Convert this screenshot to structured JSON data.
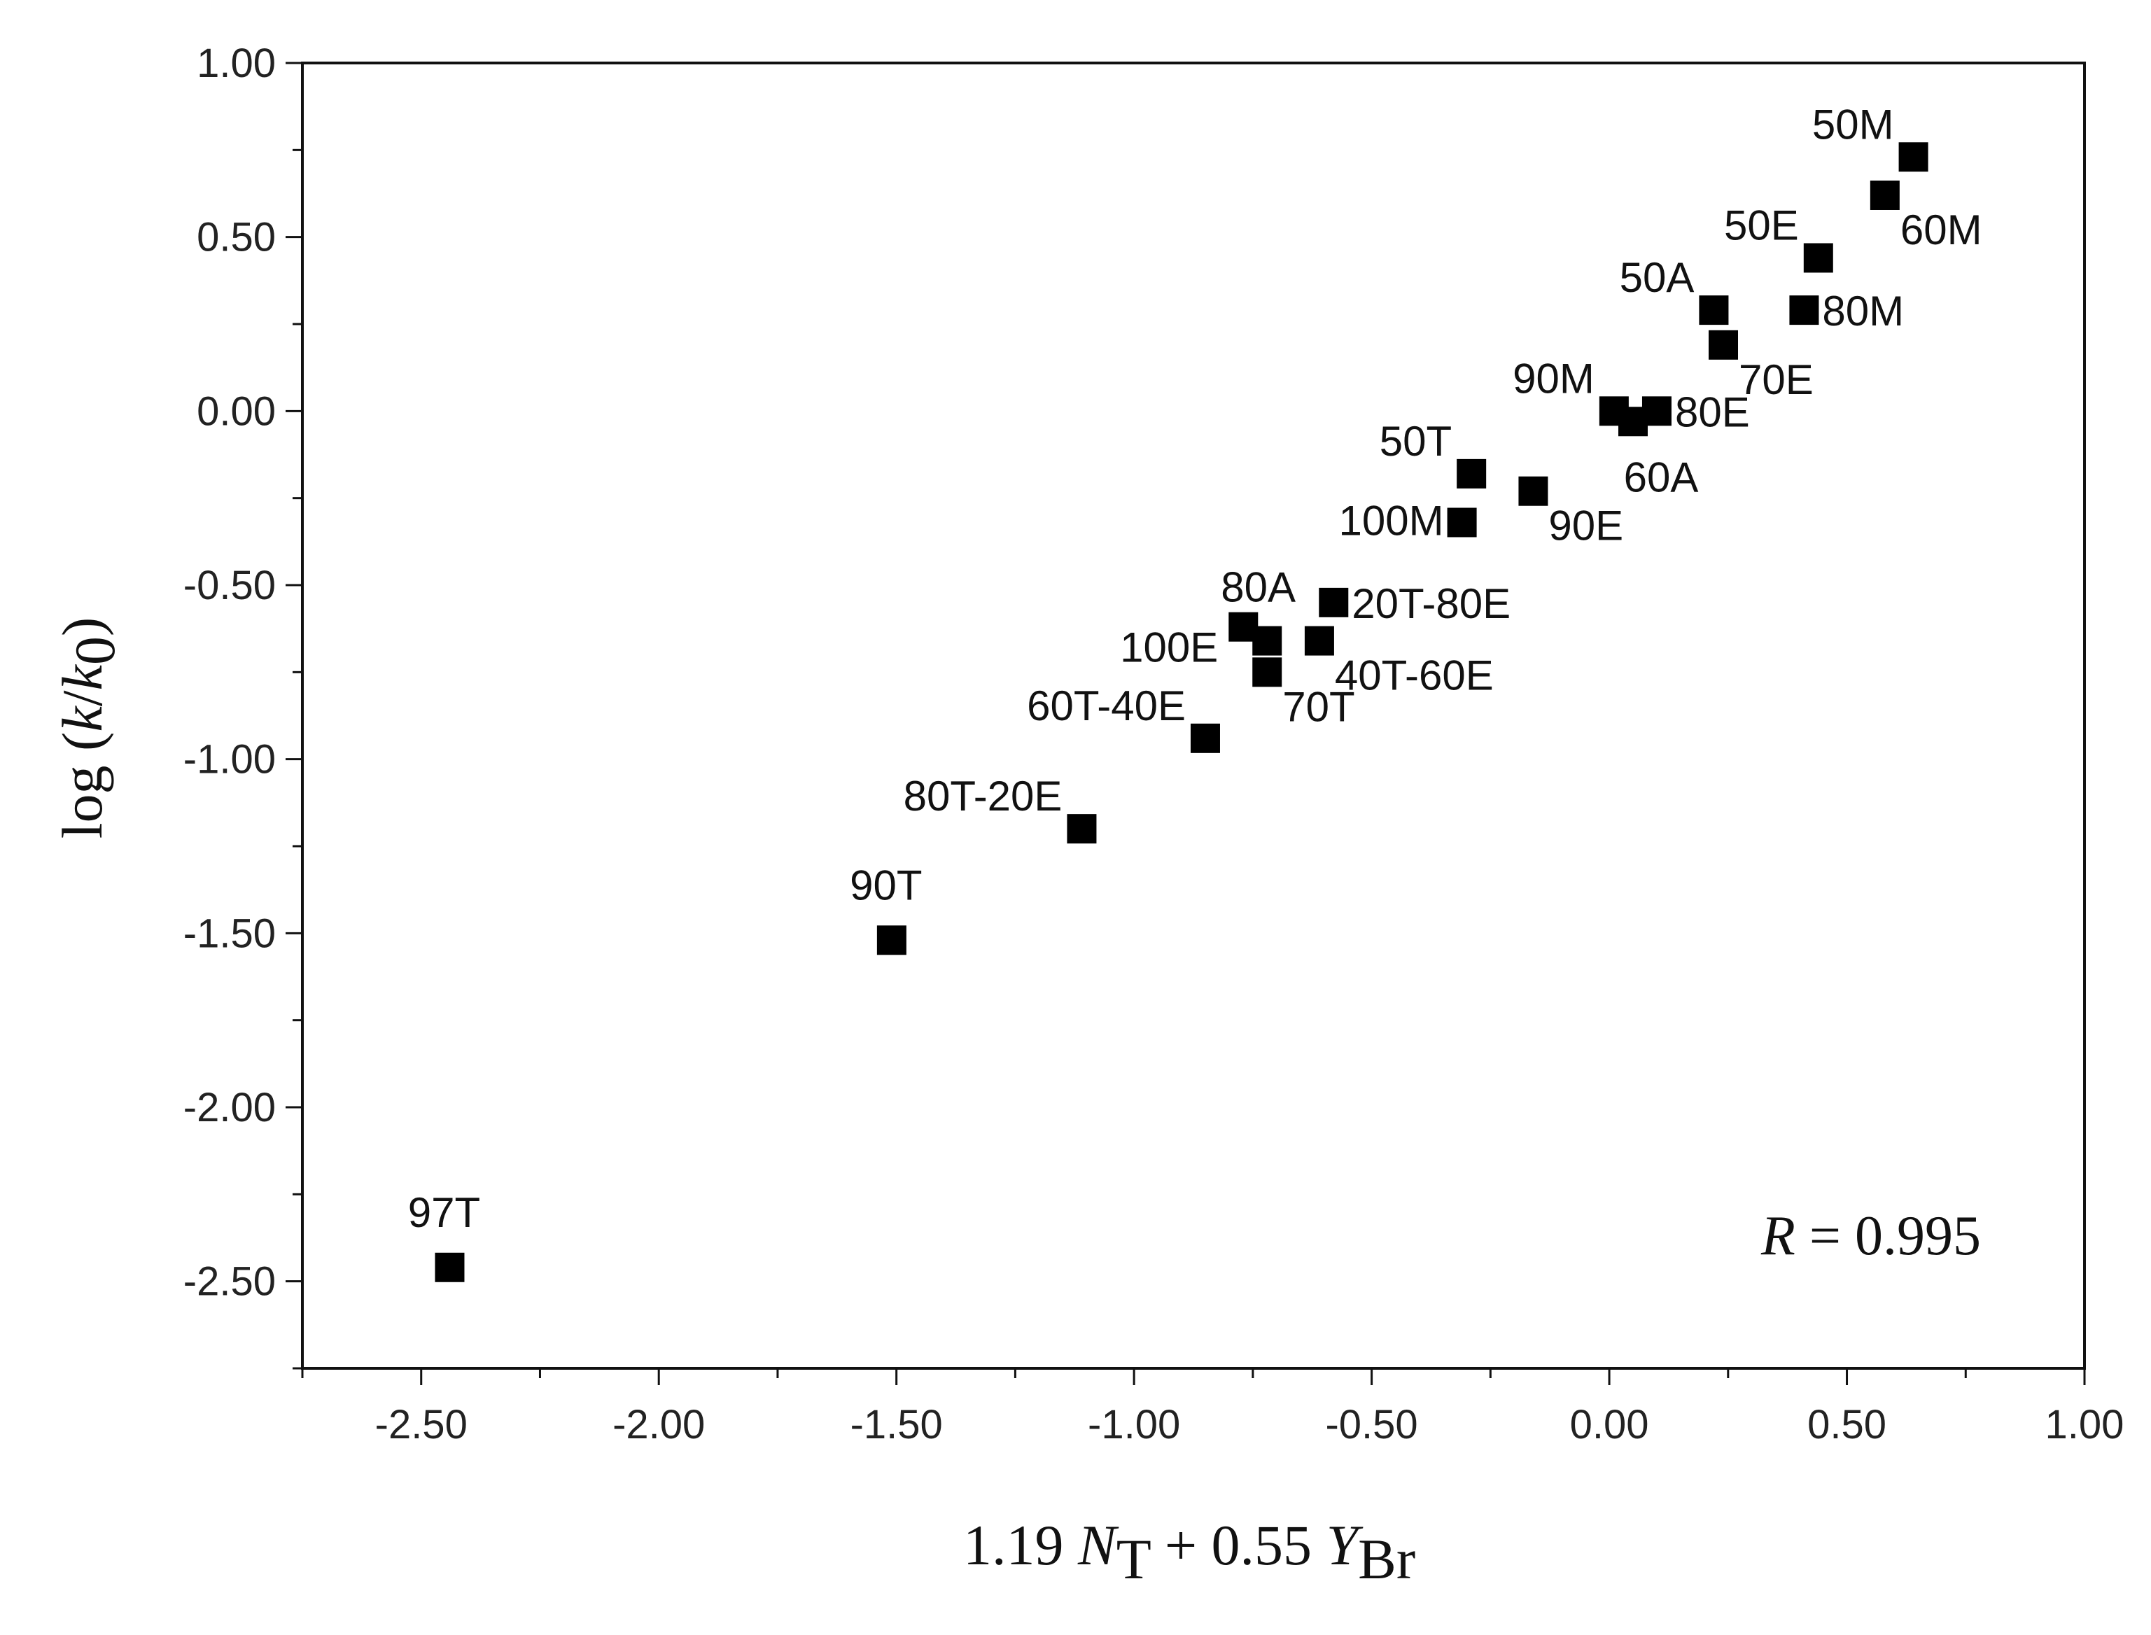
{
  "chart_data": {
    "type": "scatter",
    "title": "",
    "xlabel": {
      "prefix": "1.19",
      "var1": "N",
      "sub1": "T",
      "mid": "+ 0.55",
      "var2": "Y",
      "sub2": "Br"
    },
    "ylabel": {
      "prefix": "log (",
      "num": "k",
      "slash": "/",
      "den": "k",
      "den_sub": "0",
      "suffix": ")"
    },
    "xlim": [
      -2.75,
      1.0
    ],
    "ylim": [
      -2.75,
      1.0
    ],
    "xticks": [
      "-2.50",
      "-2.00",
      "-1.50",
      "-1.00",
      "-0.50",
      "0.00",
      "0.50",
      "1.00"
    ],
    "yticks": [
      "1.00",
      "0.50",
      "0.00",
      "-0.50",
      "-1.00",
      "-1.50",
      "-2.00",
      "-2.50"
    ],
    "annotation": {
      "var": "R",
      "text": " = 0.995"
    },
    "marker": "square",
    "marker_color": "#000000",
    "points": [
      {
        "label": "50M",
        "x": 0.64,
        "y": 0.73,
        "label_pos": "upper-left"
      },
      {
        "label": "60M",
        "x": 0.58,
        "y": 0.62,
        "label_pos": "lower-right"
      },
      {
        "label": "50E",
        "x": 0.44,
        "y": 0.44,
        "label_pos": "upper-left"
      },
      {
        "label": "80M",
        "x": 0.41,
        "y": 0.29,
        "label_pos": "right"
      },
      {
        "label": "50A",
        "x": 0.22,
        "y": 0.29,
        "label_pos": "upper-left"
      },
      {
        "label": "70E",
        "x": 0.24,
        "y": 0.19,
        "label_pos": "lower-right"
      },
      {
        "label": "90M",
        "x": 0.01,
        "y": 0.0,
        "label_pos": "upper-left"
      },
      {
        "label": "80E",
        "x": 0.1,
        "y": 0.0,
        "label_pos": "right"
      },
      {
        "label": "60A",
        "x": 0.05,
        "y": -0.03,
        "label_pos": "below"
      },
      {
        "label": "50T",
        "x": -0.29,
        "y": -0.18,
        "label_pos": "upper-left"
      },
      {
        "label": "90E",
        "x": -0.16,
        "y": -0.23,
        "label_pos": "lower-right"
      },
      {
        "label": "100M",
        "x": -0.31,
        "y": -0.32,
        "label_pos": "left"
      },
      {
        "label": "80A",
        "x": -0.77,
        "y": -0.62,
        "label_pos": "upper-right"
      },
      {
        "label": "20T-80E",
        "x": -0.58,
        "y": -0.55,
        "label_pos": "right"
      },
      {
        "label": "100E",
        "x": -0.72,
        "y": -0.66,
        "label_pos": "left-below"
      },
      {
        "label": "40T-60E",
        "x": -0.61,
        "y": -0.66,
        "label_pos": "lower-right"
      },
      {
        "label": "70T",
        "x": -0.72,
        "y": -0.75,
        "label_pos": "lower-right"
      },
      {
        "label": "60T-40E",
        "x": -0.85,
        "y": -0.94,
        "label_pos": "upper-left"
      },
      {
        "label": "80T-20E",
        "x": -1.11,
        "y": -1.2,
        "label_pos": "upper-left"
      },
      {
        "label": "90T",
        "x": -1.51,
        "y": -1.52,
        "label_pos": "above"
      },
      {
        "label": "97T",
        "x": -2.44,
        "y": -2.46,
        "label_pos": "above"
      }
    ]
  }
}
